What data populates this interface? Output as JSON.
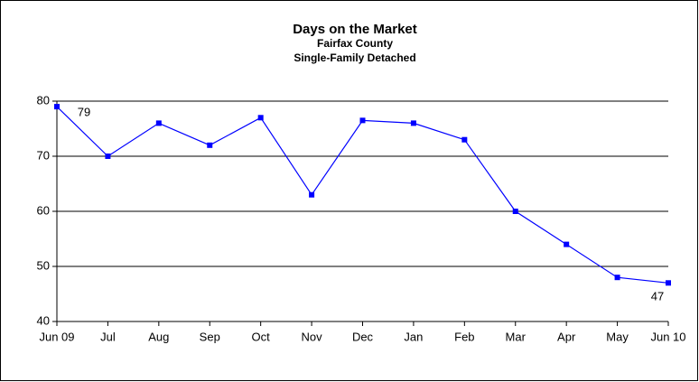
{
  "chart_data": {
    "type": "line",
    "title": "Days on the Market",
    "subtitle": [
      "Fairfax County",
      "Single-Family Detached"
    ],
    "categories": [
      "Jun 09",
      "Jul",
      "Aug",
      "Sep",
      "Oct",
      "Nov",
      "Dec",
      "Jan",
      "Feb",
      "Mar",
      "Apr",
      "May",
      "Jun 10"
    ],
    "series": [
      {
        "name": "Days on the Market",
        "color": "#0000ff",
        "values": [
          79,
          70,
          76,
          72,
          77,
          63,
          76.5,
          76,
          73,
          60,
          54,
          48,
          47
        ],
        "value_labels": [
          "79",
          null,
          null,
          null,
          null,
          null,
          null,
          null,
          null,
          null,
          null,
          null,
          "47"
        ]
      }
    ],
    "ylim": [
      40,
      80
    ],
    "yticks": [
      40,
      50,
      60,
      70,
      80
    ],
    "grid": true
  }
}
